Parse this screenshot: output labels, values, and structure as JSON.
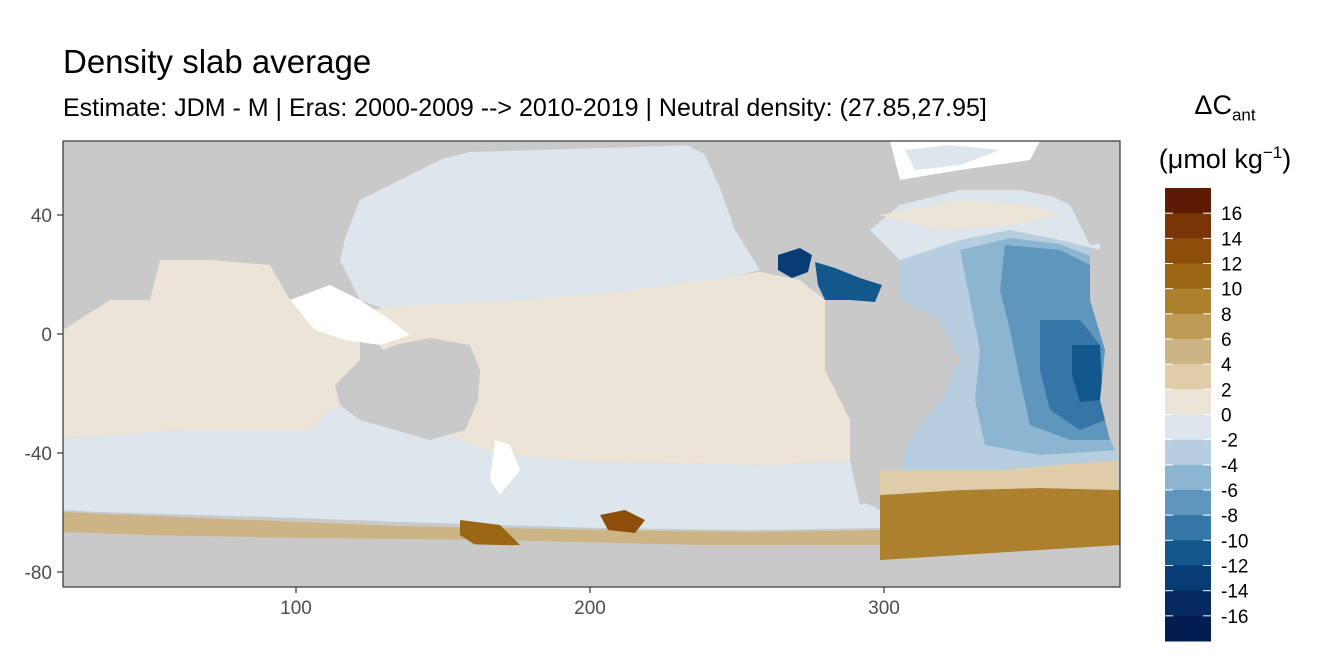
{
  "title": "Density slab average",
  "subtitle": "Estimate: JDM - M | Eras: 2000-2009 --> 2010-2019 | Neutral density: (27.85,27.95]",
  "legend": {
    "symbol": "ΔC",
    "subscript": "ant",
    "unit_open": "(μmol kg",
    "unit_sup": "−1",
    "unit_close": ")",
    "labels": [
      "16",
      "14",
      "12",
      "10",
      "8",
      "6",
      "4",
      "2",
      "0",
      "-2",
      "-4",
      "-6",
      "-8",
      "-10",
      "-12",
      "-14",
      "-16"
    ],
    "colors": [
      "#5f1a03",
      "#7a3506",
      "#8c4e0a",
      "#9a6614",
      "#ac802c",
      "#bd9a55",
      "#cdb484",
      "#dfcda9",
      "#ece4d6",
      "#dce6ec",
      "#b6cedf",
      "#8cb5d1",
      "#5e96bd",
      "#3576a6",
      "#13588d",
      "#083c75",
      "#052a62",
      "#031d52"
    ]
  },
  "map": {
    "land_color": "#c9c9c9",
    "x_ticks": [
      100,
      200,
      300
    ],
    "y_ticks": [
      40,
      0,
      -40,
      -80
    ],
    "x_range": [
      20,
      380
    ],
    "y_range": [
      -85,
      65
    ]
  }
}
